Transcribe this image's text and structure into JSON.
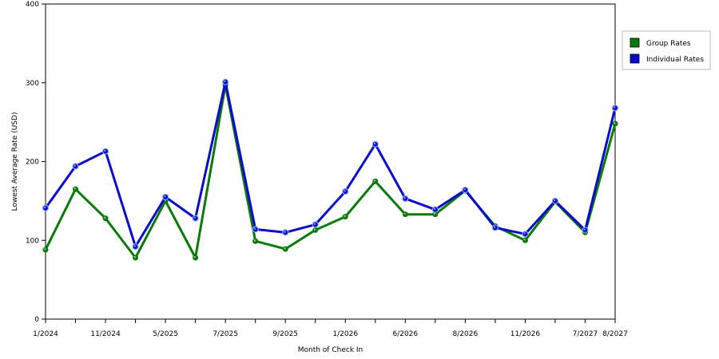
{
  "chart_data": {
    "type": "line",
    "title": "",
    "xlabel": "Month of Check In",
    "ylabel": "Lowest Average Rate (USD)",
    "ylim": [
      0,
      400
    ],
    "yticks": [
      0,
      100,
      200,
      300,
      400
    ],
    "grid": "horizontal dashed",
    "legend_position": "right",
    "categories": [
      "1/2024",
      "",
      "11/2024",
      "",
      "5/2025",
      "",
      "7/2025",
      "",
      "9/2025",
      "",
      "1/2026",
      "",
      "6/2026",
      "",
      "8/2026",
      "",
      "11/2026",
      "",
      "7/2027",
      "8/2027"
    ],
    "series": [
      {
        "name": "Group Rates",
        "color": "#0a7a0a",
        "values": [
          88,
          165,
          128,
          78,
          150,
          78,
          297,
          99,
          89,
          113,
          130,
          175,
          133,
          133,
          163,
          118,
          100,
          149,
          110,
          248
        ]
      },
      {
        "name": "Individual Rates",
        "color": "#0a0acc",
        "values": [
          141,
          194,
          213,
          92,
          155,
          128,
          301,
          114,
          110,
          120,
          162,
          222,
          153,
          139,
          164,
          116,
          108,
          150,
          113,
          268
        ]
      }
    ]
  }
}
